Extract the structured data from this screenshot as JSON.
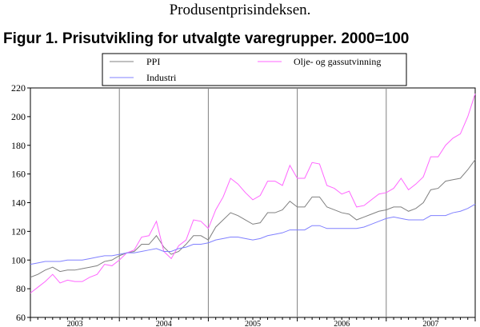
{
  "page": {
    "heading": "Produsentprisindeksen.",
    "figure_title": "Figur 1. Prisutvikling for utvalgte varegrupper. 2000=100"
  },
  "chart_data": {
    "type": "line",
    "title": "Figur 1. Prisutvikling for utvalgte varegrupper. 2000=100",
    "xlabel": "",
    "ylabel": "",
    "ylim": [
      60,
      220
    ],
    "yticks": [
      60,
      80,
      100,
      120,
      140,
      160,
      180,
      200,
      220
    ],
    "xlim": [
      0,
      60
    ],
    "year_labels": [
      {
        "label": "2003",
        "x": 0
      },
      {
        "label": "2004",
        "x": 12
      },
      {
        "label": "2005",
        "x": 24
      },
      {
        "label": "2006",
        "x": 36
      },
      {
        "label": "2007",
        "x": 48
      }
    ],
    "grid": {
      "vertical": true,
      "horizontal": false
    },
    "legend_position": "top",
    "series": [
      {
        "name": "PPI",
        "color": "#808080",
        "values": [
          88,
          90,
          93,
          95,
          92,
          93,
          93,
          94,
          95,
          96,
          99,
          100,
          103,
          105,
          106,
          111,
          111,
          117,
          109,
          104,
          106,
          111,
          117,
          117,
          114,
          123,
          128,
          133,
          131,
          128,
          125,
          126,
          133,
          133,
          135,
          141,
          137,
          137,
          144,
          144,
          137,
          135,
          133,
          132,
          128,
          130,
          132,
          134,
          135,
          137,
          137,
          134,
          136,
          140,
          149,
          150,
          155,
          156,
          157,
          163,
          170
        ]
      },
      {
        "name": "Olje- og gassutvinning",
        "color": "#ff66ff",
        "values": [
          77,
          81,
          85,
          90,
          84,
          86,
          85,
          85,
          88,
          90,
          97,
          96,
          100,
          105,
          107,
          116,
          117,
          127,
          106,
          101,
          110,
          114,
          128,
          127,
          122,
          135,
          144,
          157,
          153,
          147,
          142,
          145,
          155,
          155,
          152,
          166,
          157,
          157,
          168,
          167,
          152,
          150,
          146,
          148,
          137,
          138,
          142,
          146,
          147,
          150,
          157,
          149,
          153,
          158,
          172,
          172,
          180,
          185,
          188,
          200,
          216
        ]
      },
      {
        "name": "Industri",
        "color": "#8080ff",
        "values": [
          97,
          98,
          99,
          99,
          99,
          100,
          100,
          100,
          101,
          102,
          103,
          103,
          104,
          105,
          105,
          106,
          107,
          108,
          106,
          106,
          108,
          109,
          111,
          111,
          112,
          114,
          115,
          116,
          116,
          115,
          114,
          115,
          117,
          118,
          119,
          121,
          121,
          121,
          124,
          124,
          122,
          122,
          122,
          122,
          122,
          123,
          125,
          127,
          129,
          130,
          129,
          128,
          128,
          128,
          131,
          131,
          131,
          133,
          134,
          136,
          139
        ]
      }
    ]
  }
}
